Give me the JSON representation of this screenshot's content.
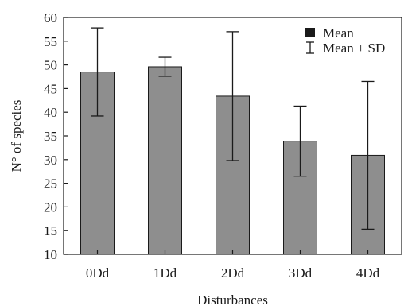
{
  "chart_data": {
    "type": "bar",
    "categories": [
      "0Dd",
      "1Dd",
      "2Dd",
      "3Dd",
      "4Dd"
    ],
    "series": [
      {
        "values": [
          48.5,
          49.6,
          43.4,
          33.9,
          30.9
        ],
        "sd": [
          9.3,
          2.0,
          13.6,
          7.4,
          15.6
        ]
      }
    ],
    "xlabel": "Disturbances",
    "ylabel": "N° of species",
    "ylim": [
      10,
      60
    ],
    "yticks": [
      10,
      15,
      20,
      25,
      30,
      35,
      40,
      45,
      50,
      55,
      60
    ],
    "grid": false,
    "legend": {
      "position": "top-right",
      "entries": [
        "Mean",
        "Mean ± SD"
      ]
    },
    "colors": {
      "bar_fill": "#8e8e8e",
      "bar_stroke": "#1a1a1a",
      "axis": "#1a1a1a"
    }
  }
}
